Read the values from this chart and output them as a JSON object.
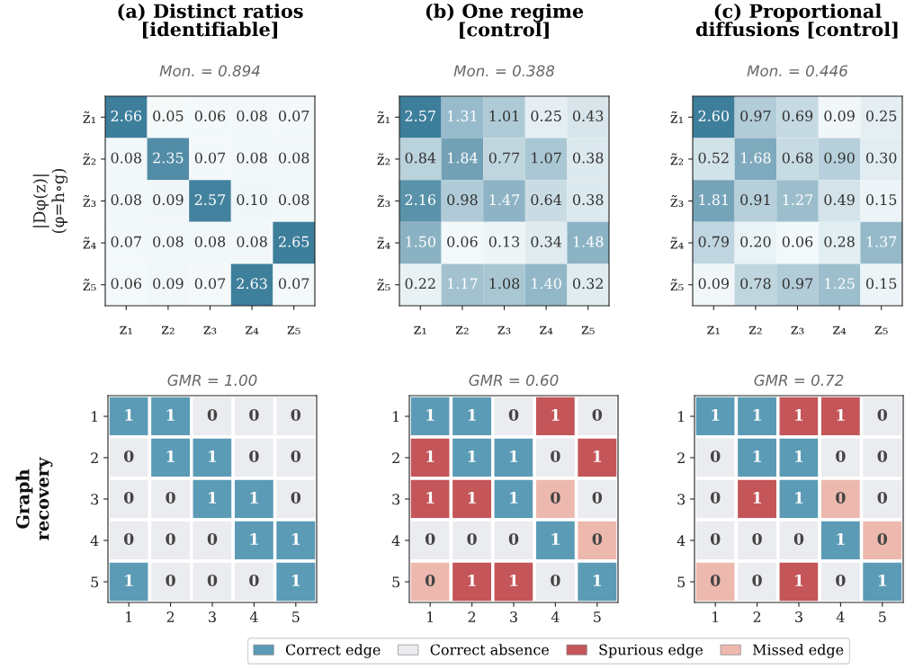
{
  "chart_data": [
    {
      "type": "heatmap",
      "title": "(a) Distinct ratios\n[identifiable]",
      "subtitle": "Mon. = 0.894",
      "ylabel": "|Dφ(z)|\n(φ=h∘g)",
      "color": "#3d7e9b",
      "data_labels": true,
      "cell_labels": [
        [
          "2.66",
          "0.05",
          "0.06",
          "0.08",
          "0.07"
        ],
        [
          "0.08",
          "2.35",
          "0.07",
          "0.08",
          "0.08"
        ],
        [
          "0.08",
          "0.09",
          "2.57",
          "0.10",
          "0.08"
        ],
        [
          "0.07",
          "0.08",
          "0.08",
          "0.08",
          "2.65"
        ],
        [
          "0.06",
          "0.09",
          "0.07",
          "2.63",
          "0.07"
        ]
      ],
      "categories": [
        "z₁",
        "z₂",
        "z₃",
        "z₄",
        "z₅"
      ],
      "y_categories": [
        "z̃₁",
        "z̃₂",
        "z̃₃",
        "z̃₄",
        "z̃₅"
      ],
      "cells": [
        [
          2.66,
          0.05,
          0.06,
          0.08,
          0.07
        ],
        [
          0.08,
          2.35,
          0.07,
          0.08,
          0.08
        ],
        [
          0.08,
          0.09,
          2.57,
          0.1,
          0.08
        ],
        [
          0.07,
          0.08,
          0.08,
          0.08,
          2.65
        ],
        [
          0.06,
          0.09,
          0.07,
          2.63,
          0.07
        ]
      ]
    },
    {
      "type": "heatmap",
      "title": "(b) One regime\n[control]",
      "subtitle": "Mon. = 0.388",
      "color": "#3d7e9b",
      "data_labels": true,
      "cell_labels": [
        [
          "2.57",
          "1.31",
          "1.01",
          "0.25",
          "0.43"
        ],
        [
          "0.84",
          "1.84",
          "0.77",
          "1.07",
          "0.38"
        ],
        [
          "2.16",
          "0.98",
          "1.47",
          "0.64",
          "0.38"
        ],
        [
          "1.50",
          "0.06",
          "0.13",
          "0.34",
          "1.48"
        ],
        [
          "0.22",
          "1.17",
          "1.08",
          "1.40",
          "0.32"
        ]
      ],
      "categories": [
        "z₁",
        "z₂",
        "z₃",
        "z₄",
        "z₅"
      ],
      "y_categories": [
        "z̃₁",
        "z̃₂",
        "z̃₃",
        "z̃₄",
        "z̃₅"
      ],
      "cells": [
        [
          2.57,
          1.31,
          1.01,
          0.25,
          0.43
        ],
        [
          0.84,
          1.84,
          0.77,
          1.07,
          0.38
        ],
        [
          2.16,
          0.98,
          1.47,
          0.64,
          0.38
        ],
        [
          1.5,
          0.06,
          0.13,
          0.34,
          1.48
        ],
        [
          0.22,
          1.17,
          1.08,
          1.4,
          0.32
        ]
      ]
    },
    {
      "type": "heatmap",
      "title": "(c) Proportional\ndiffusions [control]",
      "subtitle": "Mon. = 0.446",
      "color": "#3d7e9b",
      "data_labels": true,
      "cell_labels": [
        [
          "2.60",
          "0.97",
          "0.69",
          "0.09",
          "0.25"
        ],
        [
          "0.52",
          "1.68",
          "0.68",
          "0.90",
          "0.30"
        ],
        [
          "1.81",
          "0.91",
          "1.27",
          "0.49",
          "0.15"
        ],
        [
          "0.79",
          "0.20",
          "0.06",
          "0.28",
          "1.37"
        ],
        [
          "0.09",
          "0.78",
          "0.97",
          "1.25",
          "0.15"
        ]
      ],
      "categories": [
        "z₁",
        "z₂",
        "z₃",
        "z₄",
        "z₅"
      ],
      "y_categories": [
        "z̃₁",
        "z̃₂",
        "z̃₃",
        "z̃₄",
        "z̃₅"
      ],
      "cells": [
        [
          2.6,
          0.97,
          0.69,
          0.09,
          0.25
        ],
        [
          0.52,
          1.68,
          0.68,
          0.9,
          0.3
        ],
        [
          1.81,
          0.91,
          1.27,
          0.49,
          0.15
        ],
        [
          0.79,
          0.2,
          0.06,
          0.28,
          1.37
        ],
        [
          0.09,
          0.78,
          0.97,
          1.25,
          0.15
        ]
      ]
    },
    {
      "type": "heatmap",
      "subtitle": "GMR = 1.00",
      "ylabel": "Graph\nrecovery",
      "data_labels": true,
      "categories": [
        "1",
        "2",
        "3",
        "4",
        "5"
      ],
      "y_categories": [
        "1",
        "2",
        "3",
        "4",
        "5"
      ],
      "cells": [
        [
          1,
          1,
          0,
          0,
          0
        ],
        [
          0,
          1,
          1,
          0,
          0
        ],
        [
          0,
          0,
          1,
          1,
          0
        ],
        [
          0,
          0,
          0,
          1,
          1
        ],
        [
          1,
          0,
          0,
          0,
          1
        ]
      ],
      "colors": [
        [
          "#5b9bb5",
          "#5b9bb5",
          "#eaecef",
          "#eaecef",
          "#eaecef"
        ],
        [
          "#eaecef",
          "#5b9bb5",
          "#5b9bb5",
          "#eaecef",
          "#eaecef"
        ],
        [
          "#eaecef",
          "#eaecef",
          "#5b9bb5",
          "#5b9bb5",
          "#eaecef"
        ],
        [
          "#eaecef",
          "#eaecef",
          "#eaecef",
          "#5b9bb5",
          "#5b9bb5"
        ],
        [
          "#5b9bb5",
          "#eaecef",
          "#eaecef",
          "#eaecef",
          "#5b9bb5"
        ]
      ]
    },
    {
      "type": "heatmap",
      "subtitle": "GMR = 0.60",
      "data_labels": true,
      "categories": [
        "1",
        "2",
        "3",
        "4",
        "5"
      ],
      "y_categories": [
        "1",
        "2",
        "3",
        "4",
        "5"
      ],
      "cells": [
        [
          1,
          1,
          0,
          1,
          0
        ],
        [
          1,
          1,
          1,
          0,
          1
        ],
        [
          1,
          1,
          1,
          0,
          0
        ],
        [
          0,
          0,
          0,
          1,
          0
        ],
        [
          0,
          1,
          1,
          0,
          1
        ]
      ],
      "colors": [
        [
          "#5b9bb5",
          "#5b9bb5",
          "#eaecef",
          "#c45558",
          "#eaecef"
        ],
        [
          "#c45558",
          "#5b9bb5",
          "#5b9bb5",
          "#eaecef",
          "#c45558"
        ],
        [
          "#c45558",
          "#c45558",
          "#5b9bb5",
          "#edb8ae",
          "#eaecef"
        ],
        [
          "#eaecef",
          "#eaecef",
          "#eaecef",
          "#5b9bb5",
          "#edb8ae"
        ],
        [
          "#edb8ae",
          "#c45558",
          "#c45558",
          "#eaecef",
          "#5b9bb5"
        ]
      ]
    },
    {
      "type": "heatmap",
      "subtitle": "GMR = 0.72",
      "data_labels": true,
      "categories": [
        "1",
        "2",
        "3",
        "4",
        "5"
      ],
      "y_categories": [
        "1",
        "2",
        "3",
        "4",
        "5"
      ],
      "cells": [
        [
          1,
          1,
          1,
          1,
          0
        ],
        [
          0,
          1,
          1,
          0,
          0
        ],
        [
          0,
          1,
          1,
          0,
          0
        ],
        [
          0,
          0,
          0,
          1,
          0
        ],
        [
          0,
          0,
          1,
          0,
          1
        ]
      ],
      "colors": [
        [
          "#5b9bb5",
          "#5b9bb5",
          "#c45558",
          "#c45558",
          "#eaecef"
        ],
        [
          "#eaecef",
          "#5b9bb5",
          "#5b9bb5",
          "#eaecef",
          "#eaecef"
        ],
        [
          "#eaecef",
          "#c45558",
          "#5b9bb5",
          "#edb8ae",
          "#eaecef"
        ],
        [
          "#eaecef",
          "#eaecef",
          "#eaecef",
          "#5b9bb5",
          "#edb8ae"
        ],
        [
          "#edb8ae",
          "#eaecef",
          "#c45558",
          "#eaecef",
          "#5b9bb5"
        ]
      ]
    },
    {
      "type": "other",
      "categories": [
        "Correct edge",
        "Correct absence",
        "Spurious edge",
        "Missed edge"
      ],
      "colors": [
        "#5b9bb5",
        "#eaecef",
        "#c45558",
        "#edb8ae"
      ]
    }
  ]
}
